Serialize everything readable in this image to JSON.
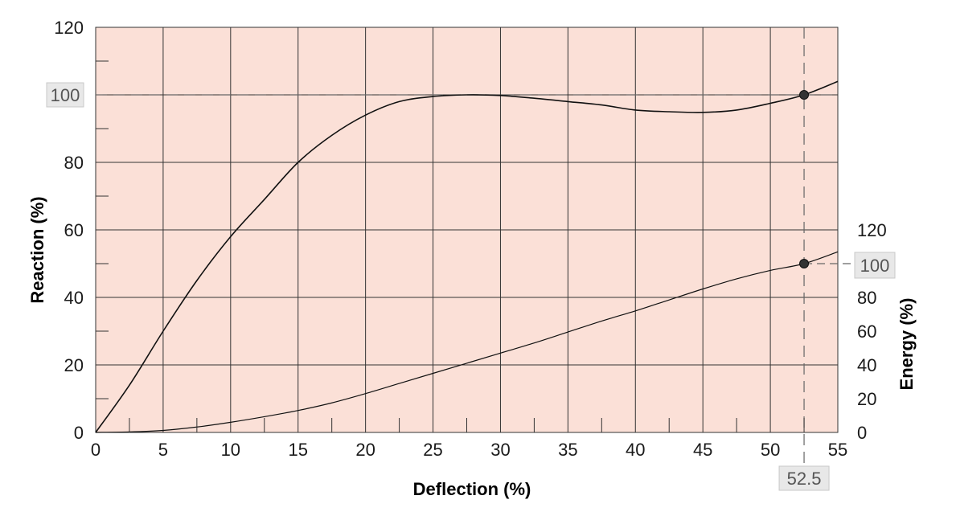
{
  "chart_data": {
    "type": "line",
    "title": "",
    "xlabel": "Deflection (%)",
    "ylabel": "Reaction (%)",
    "y2label": "Energy (%)",
    "xlim": [
      0,
      55
    ],
    "ylim": [
      0,
      120
    ],
    "y2lim": [
      0,
      120
    ],
    "grid": true,
    "x_ticks": [
      "0",
      "5",
      "10",
      "15",
      "20",
      "25",
      "30",
      "35",
      "40",
      "45",
      "50",
      "55"
    ],
    "y_ticks": [
      "0",
      "20",
      "40",
      "60",
      "80",
      "120"
    ],
    "y2_ticks": [
      "0",
      "20",
      "40",
      "60",
      "80",
      "120"
    ],
    "series": [
      {
        "axis": "left",
        "x": [
          0,
          2.5,
          5,
          7.5,
          10,
          12.5,
          15,
          17.5,
          20,
          22.5,
          25,
          27.5,
          30,
          32.5,
          35,
          37.5,
          40,
          42.5,
          45,
          47.5,
          50,
          52.5,
          55
        ],
        "y": [
          0,
          14,
          30,
          45,
          58,
          69,
          80,
          88,
          94,
          98,
          99.5,
          100,
          99.8,
          99,
          98,
          97,
          95.5,
          95,
          94.8,
          95.5,
          97.5,
          100,
          104
        ]
      },
      {
        "axis": "right",
        "x": [
          0,
          2.5,
          5,
          7.5,
          10,
          12.5,
          15,
          17.5,
          20,
          22.5,
          25,
          27.5,
          30,
          32.5,
          35,
          37.5,
          40,
          42.5,
          45,
          47.5,
          50,
          52.5,
          55
        ],
        "y": [
          0,
          0.3,
          1.2,
          3.2,
          6,
          9.3,
          13,
          17.5,
          23,
          29,
          35,
          41,
          47,
          53,
          59.5,
          66,
          72,
          78.5,
          85,
          91,
          96,
          100,
          107
        ]
      }
    ],
    "reference": {
      "x": 52.5,
      "x_label": "52.5",
      "reaction_y": 100,
      "reaction_label": "100",
      "energy_y": 100,
      "energy_label": "100"
    },
    "colors": {
      "plot_background": "#fbe0d7",
      "grid": "#333333",
      "curve": "#111111",
      "marker": "#333333",
      "reference_line": "#666666",
      "label_box": "#e8e8e8"
    }
  }
}
